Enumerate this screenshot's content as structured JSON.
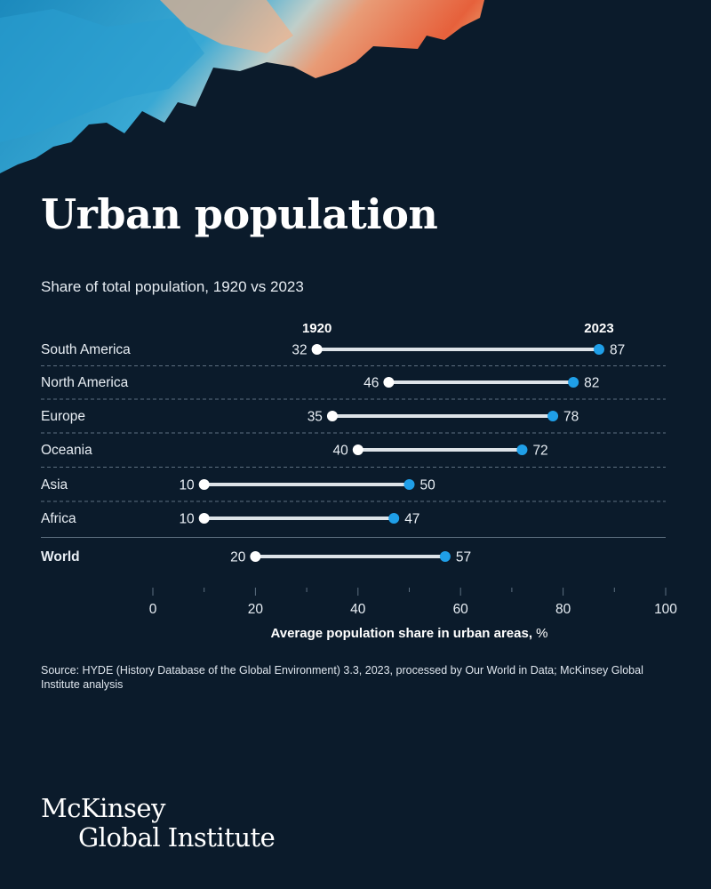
{
  "hero": {
    "image": "abstract-feather-artwork",
    "colors": [
      "#2aa3d6",
      "#f29a6e",
      "#f2603a"
    ]
  },
  "title": "Urban population",
  "subtitle": "Share of total population, 1920 vs 2023",
  "chart_data": {
    "type": "dumbbell",
    "title": "Urban population",
    "subtitle": "Share of total population, 1920 vs 2023",
    "xlabel": "Average population share in urban areas, %",
    "xlim": [
      0,
      100
    ],
    "xticks": [
      0,
      20,
      40,
      60,
      80,
      100
    ],
    "minor_ticks": [
      10,
      30,
      50,
      70,
      90
    ],
    "series_labels": [
      "1920",
      "2023"
    ],
    "series_colors": {
      "1920": "#ffffff",
      "2023": "#1f9fe8"
    },
    "categories": [
      "South America",
      "North America",
      "Europe",
      "Oceania",
      "Asia",
      "Africa",
      "World"
    ],
    "series": [
      {
        "name": "1920",
        "values": [
          32,
          46,
          35,
          40,
          10,
          10,
          20
        ]
      },
      {
        "name": "2023",
        "values": [
          87,
          82,
          78,
          72,
          50,
          47,
          57
        ]
      }
    ],
    "highlight_category": "World",
    "grid": false
  },
  "source": "Source: HYDE (History Database of the Global Environment) 3.3, 2023, processed by Our World in Data; McKinsey Global Institute analysis",
  "logo": {
    "line1": "McKinsey",
    "line2": "Global Institute"
  }
}
